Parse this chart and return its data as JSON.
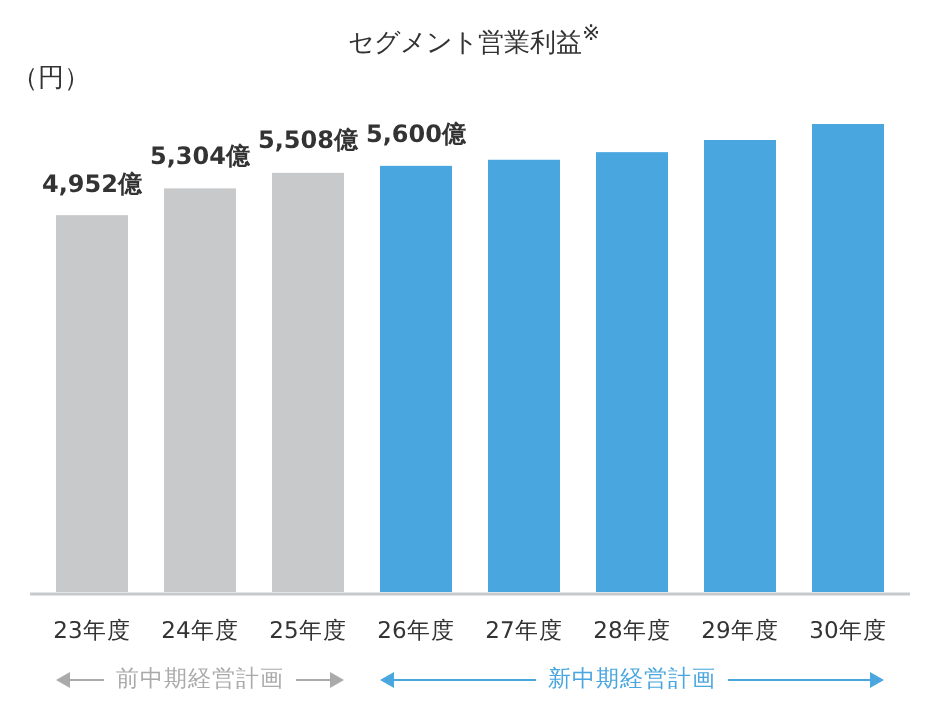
{
  "chart_data": {
    "type": "bar",
    "title": "セグメント営業利益$^{※}$",
    "categories": [
      "23年度",
      "24年度",
      "25年度",
      "26年度",
      "27年度",
      "28年度",
      "29年度",
      "30年度"
    ],
    "values": [
      4952,
      5304,
      5508,
      5600,
      5680,
      5780,
      5940,
      6150
    ],
    "value_labels": [
      "4,952億",
      "5,304億",
      "5,508億",
      "5,600億",
      null,
      null,
      null,
      null
    ],
    "colors": [
      "#c8c9cb",
      "#c8c9cb",
      "#c8c9cb",
      "#4aa6df",
      "#4aa6df",
      "#4aa6df",
      "#4aa6df",
      "#4aa6df"
    ],
    "annotations": [
      "（円）",
      "前中期経営計画",
      "新中期経営計画"
    ]
  }
}
